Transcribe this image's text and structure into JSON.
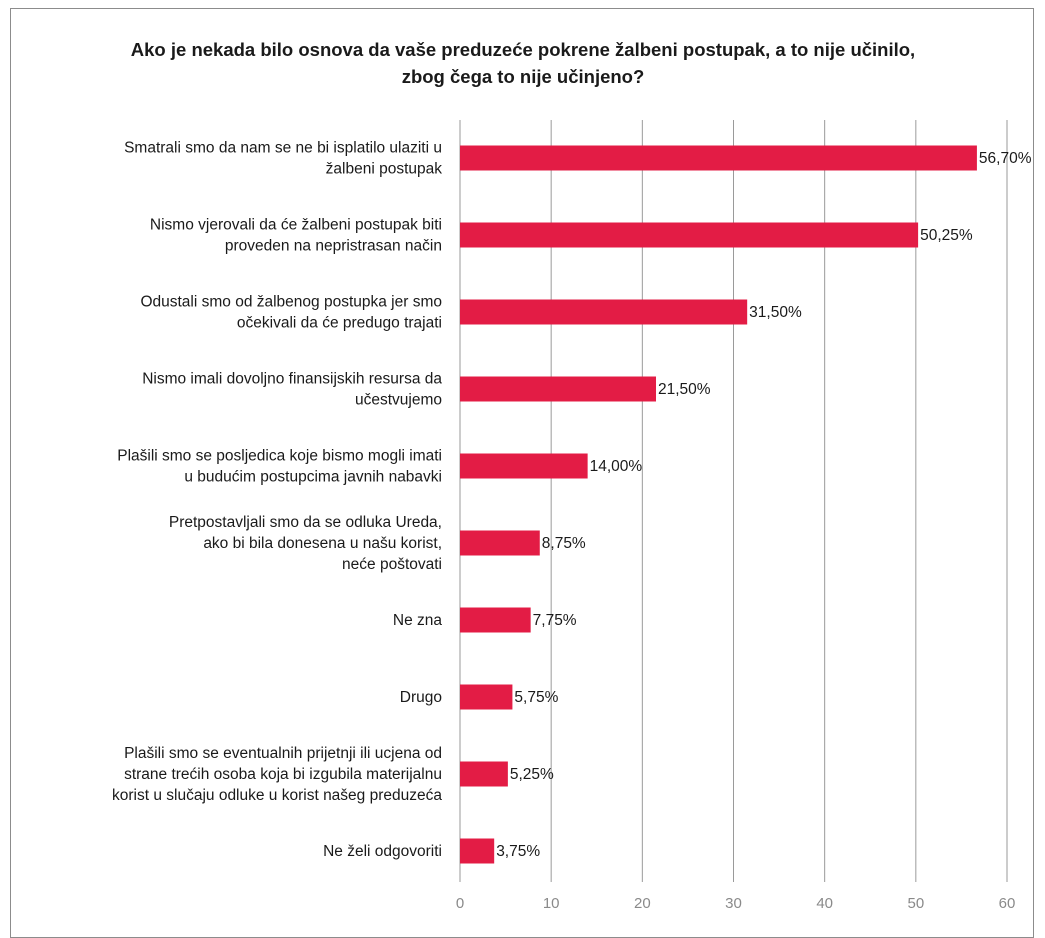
{
  "chart_data": {
    "type": "bar",
    "orientation": "horizontal",
    "title": "Ako je nekada bilo osnova da vaše preduzeće pokrene žalbeni postupak, a to nije učinilo, zbog čega to nije učinjeno?",
    "title_lines": [
      "Ako je nekada bilo osnova da vaše preduzeće pokrene žalbeni postupak, a to nije učinilo,",
      "zbog čega to nije učinjeno?"
    ],
    "categories": [
      [
        "Smatrali smo da nam se ne bi isplatilo ulaziti u",
        "žalbeni postupak"
      ],
      [
        "Nismo vjerovali da će žalbeni postupak biti",
        "proveden na nepristrasan način"
      ],
      [
        "Odustali smo od žalbenog postupka jer smo",
        "očekivali da će predugo trajati"
      ],
      [
        "Nismo imali dovoljno finansijskih resursa da",
        "učestvujemo"
      ],
      [
        "Plašili smo se posljedica koje bismo mogli imati",
        "u budućim postupcima javnih nabavki"
      ],
      [
        "Pretpostavljali smo da se odluka Ureda,",
        "ako bi bila donesena u našu korist,",
        "neće poštovati"
      ],
      [
        "Ne zna"
      ],
      [
        "Drugo"
      ],
      [
        "Plašili smo se eventualnih prijetnji ili ucjena od",
        "strane trećih osoba koja bi izgubila materijalnu",
        "korist u slučaju odluke u korist našeg preduzeća"
      ],
      [
        "Ne želi odgovoriti"
      ]
    ],
    "values": [
      56.7,
      50.25,
      31.5,
      21.5,
      14.0,
      8.75,
      7.75,
      5.75,
      5.25,
      3.75
    ],
    "data_labels": [
      "56,70%",
      "50,25%",
      "31,50%",
      "21,50%",
      "14,00%",
      "8,75%",
      "7,75%",
      "5,75%",
      "5,25%",
      "3,75%"
    ],
    "xlim": [
      0,
      60
    ],
    "xticks": [
      0,
      10,
      20,
      30,
      40,
      50,
      60
    ],
    "grid": "vertical",
    "legend": "none",
    "colors": {
      "bar": "#e31c45",
      "grid": "#9a9a9a",
      "axis_text": "#8a8a8a"
    }
  }
}
